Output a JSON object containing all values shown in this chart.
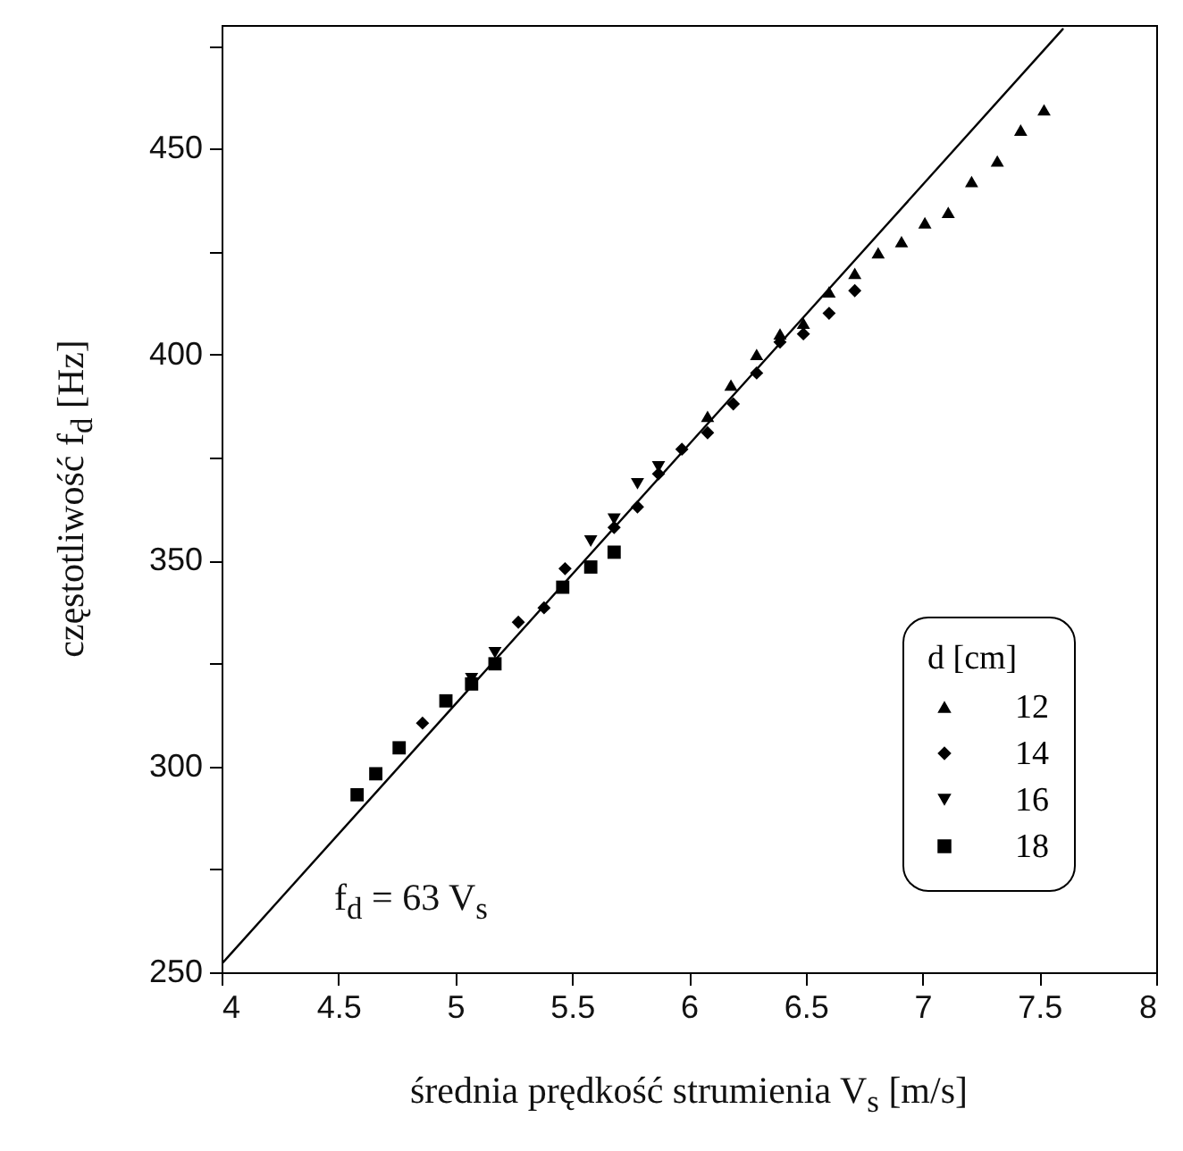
{
  "chart_data": {
    "type": "scatter",
    "xlabel": "średnia prędkość strumienia  V$_{s}$ [m/s]",
    "ylabel": "częstotliwość  f$_{d}$ [Hz]",
    "legend_title": "d [cm]",
    "legend": "bottom right",
    "grid": false,
    "xlim": [
      4,
      8
    ],
    "xticks": [
      4,
      4.5,
      5,
      5.5,
      6,
      6.5,
      7,
      7.5,
      8
    ],
    "ylim": [
      250,
      480
    ],
    "yticks": [
      250,
      {
        "value": 275,
        "label": null
      },
      300,
      {
        "value": 325,
        "label": null
      },
      350,
      {
        "value": 375,
        "label": null
      },
      400,
      {
        "value": 425,
        "label": null
      },
      450,
      {
        "value": 475,
        "label": null
      }
    ],
    "annotations": [
      "f$_{d}$ = 63 V$_{s}$"
    ],
    "series": [
      {
        "name": "12",
        "color": "#000000",
        "marker": "triangle",
        "x": [
          6.08,
          6.18,
          6.29,
          6.39,
          6.49,
          6.6,
          6.71,
          6.81,
          6.91,
          7.01,
          7.11,
          7.21,
          7.32,
          7.42,
          7.52
        ],
        "values": [
          385,
          392.6,
          400,
          405,
          407.6,
          415.2,
          419.7,
          424.7,
          427.4,
          432,
          434.5,
          442,
          447,
          454.5,
          459.4
        ]
      },
      {
        "name": "14",
        "color": "#000000",
        "marker": "diamond",
        "x": [
          4.86,
          5.27,
          5.38,
          5.47,
          5.68,
          5.78,
          5.87,
          5.97,
          6.08,
          6.19,
          6.29,
          6.39,
          6.49,
          6.6,
          6.71
        ],
        "values": [
          310.5,
          335,
          338.5,
          348,
          358,
          363,
          371,
          377,
          381,
          388,
          395.5,
          403,
          405,
          410,
          415.5
        ]
      },
      {
        "name": "16",
        "color": "#000000",
        "marker": "triangle-down",
        "x": [
          5.07,
          5.17,
          5.58,
          5.68,
          5.78,
          5.87
        ],
        "values": [
          321.3,
          327.6,
          354.7,
          360,
          368.6,
          372.7
        ]
      },
      {
        "name": "18",
        "color": "#000000",
        "marker": "square",
        "x": [
          4.58,
          4.66,
          4.76,
          4.96,
          5.07,
          5.17,
          5.46,
          5.58,
          5.68
        ],
        "values": [
          293.1,
          298.2,
          304.5,
          315.9,
          320,
          324.9,
          343.5,
          348.4,
          352
        ]
      },
      {
        "type": "line",
        "color": "#000000",
        "x": [
          4,
          7.6
        ],
        "values": [
          252,
          479
        ]
      }
    ]
  }
}
